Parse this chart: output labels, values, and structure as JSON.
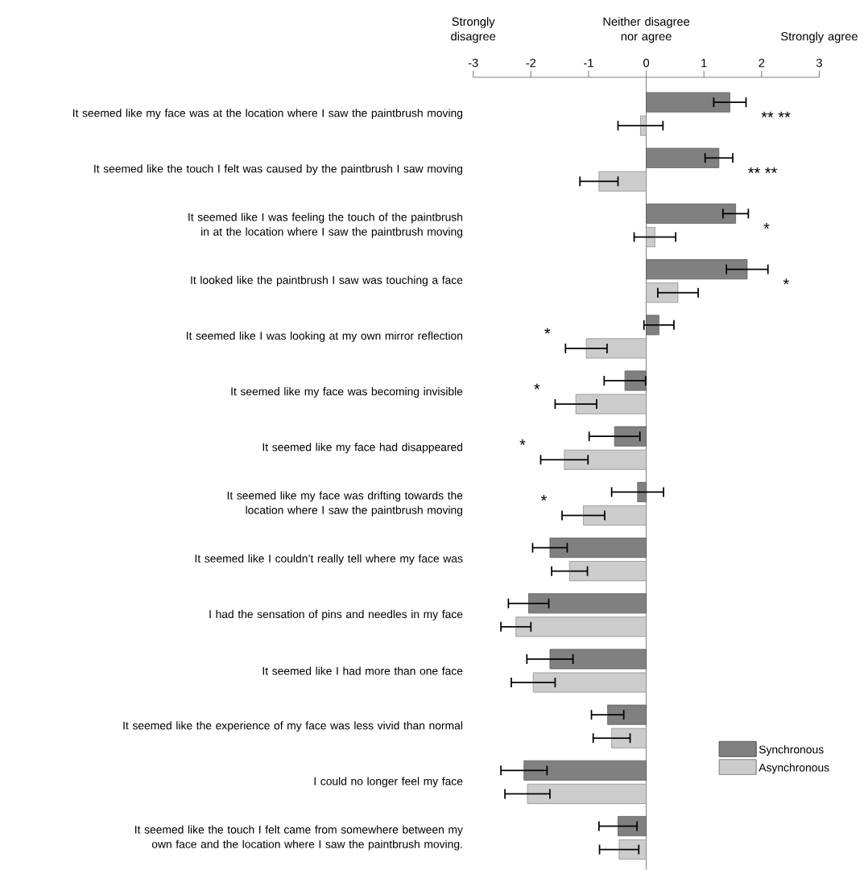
{
  "chart_data": {
    "type": "bar",
    "orientation": "horizontal",
    "categories": [
      "It seemed like my face was at the location where I saw the paintbrush moving",
      "It seemed like the touch I felt was caused by the paintbrush I saw moving",
      "It seemed like I was feeling the touch of the paintbrush in at the location where I saw the paintbrush moving",
      "It looked like the paintbrush I saw was touching a face",
      "It seemed like I was looking at my own mirror reflection",
      "It seemed like my face was becoming invisible",
      "It seemed like my face had disappeared",
      "It seemed like my face was drifting towards the location where I saw the paintbrush moving",
      "It seemed like I couldn’t really tell where my face was",
      "I had the sensation of pins and needles in my face",
      "It seemed like I had more than one face",
      "It seemed like the experience of my face was less vivid than normal",
      "I could no longer feel my face",
      "It seemed like the touch I felt came from somewhere between my own face and the location where I saw the paintbrush moving."
    ],
    "series": [
      {
        "name": "Synchronous",
        "color": "#808080",
        "values": [
          1.45,
          1.26,
          1.55,
          1.75,
          0.22,
          -0.37,
          -0.55,
          -0.15,
          -1.67,
          -2.04,
          -1.67,
          -0.67,
          -2.12,
          -0.49
        ],
        "errors": [
          0.28,
          0.24,
          0.22,
          0.36,
          0.26,
          0.36,
          0.44,
          0.45,
          0.3,
          0.35,
          0.4,
          0.28,
          0.4,
          0.33
        ],
        "value_labels": [
          "** **",
          "** **",
          "*",
          "*",
          null,
          null,
          null,
          null,
          null,
          null,
          null,
          null,
          null,
          null
        ]
      },
      {
        "name": "Asynchronous",
        "color": "#cccccc",
        "values": [
          -0.1,
          -0.82,
          0.15,
          0.55,
          -1.04,
          -1.22,
          -1.42,
          -1.09,
          -1.33,
          -2.26,
          -1.96,
          -0.6,
          -2.06,
          -0.47
        ],
        "errors": [
          0.39,
          0.33,
          0.36,
          0.35,
          0.36,
          0.36,
          0.41,
          0.37,
          0.31,
          0.26,
          0.38,
          0.32,
          0.39,
          0.34
        ],
        "value_labels": [
          null,
          null,
          null,
          null,
          "*",
          "*",
          "*",
          "*",
          null,
          null,
          null,
          null,
          null,
          null
        ]
      }
    ],
    "xlim": [
      -3,
      3
    ],
    "xticks": [
      -3,
      -2,
      -1,
      0,
      1,
      2,
      3
    ],
    "annotations": [
      "Strongly disagree",
      "Neither disagree nor agree",
      "Strongly agree"
    ],
    "legend": "bottom right"
  }
}
